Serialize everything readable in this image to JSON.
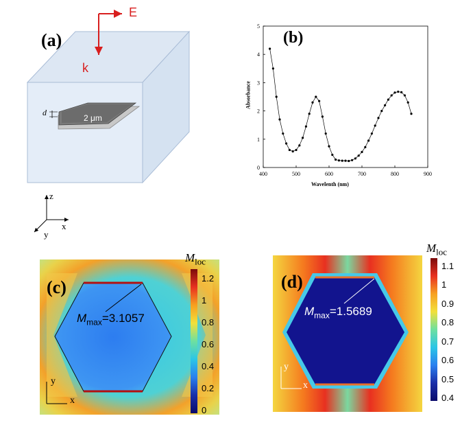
{
  "panel_a": {
    "label": "(a)",
    "e_label": "E",
    "k_label": "k",
    "d_label": "d",
    "size_label": "2 μm",
    "axis_z": "z",
    "axis_x": "x",
    "axis_y": "y"
  },
  "panel_b": {
    "label": "(b)"
  },
  "panel_c": {
    "label": "(c)",
    "mmax_symbol": "M",
    "mmax_sub": "max",
    "mmax_value": "=3.1057",
    "cb_title_symbol": "M",
    "cb_title_sub": "loc",
    "cb_ticks": [
      "1.2",
      "1",
      "0.8",
      "0.6",
      "0.4",
      "0.2",
      "0"
    ],
    "axis_x": "x",
    "axis_y": "y"
  },
  "panel_d": {
    "label": "(d)",
    "mmax_symbol": "M",
    "mmax_sub": "max",
    "mmax_value": "=1.5689",
    "cb_title_symbol": "M",
    "cb_title_sub": "loc",
    "cb_ticks": [
      "1.1",
      "1",
      "0.9",
      "0.8",
      "0.7",
      "0.6",
      "0.5",
      "0.4"
    ],
    "axis_x": "x",
    "axis_y": "y"
  },
  "chart_data": {
    "type": "line",
    "title": "",
    "xlabel": "Wavelenth (nm)",
    "ylabel": "Absorbance",
    "xlim": [
      400,
      900
    ],
    "ylim": [
      0,
      5
    ],
    "xticks": [
      400,
      500,
      600,
      700,
      800,
      900
    ],
    "yticks": [
      0,
      1,
      2,
      3,
      4,
      5
    ],
    "grid": false,
    "x": [
      420,
      430,
      440,
      450,
      460,
      470,
      480,
      490,
      500,
      510,
      520,
      530,
      540,
      550,
      560,
      570,
      580,
      590,
      600,
      610,
      620,
      630,
      640,
      650,
      660,
      670,
      680,
      690,
      700,
      710,
      720,
      730,
      740,
      750,
      760,
      770,
      780,
      790,
      800,
      810,
      820,
      830,
      840,
      850
    ],
    "y": [
      4.2,
      3.5,
      2.5,
      1.7,
      1.2,
      0.85,
      0.62,
      0.57,
      0.62,
      0.78,
      1.05,
      1.45,
      1.9,
      2.3,
      2.5,
      2.35,
      1.8,
      1.2,
      0.75,
      0.45,
      0.28,
      0.25,
      0.24,
      0.24,
      0.23,
      0.26,
      0.32,
      0.42,
      0.55,
      0.72,
      0.95,
      1.2,
      1.48,
      1.75,
      2.0,
      2.2,
      2.4,
      2.55,
      2.65,
      2.68,
      2.66,
      2.55,
      2.3,
      1.9
    ]
  }
}
